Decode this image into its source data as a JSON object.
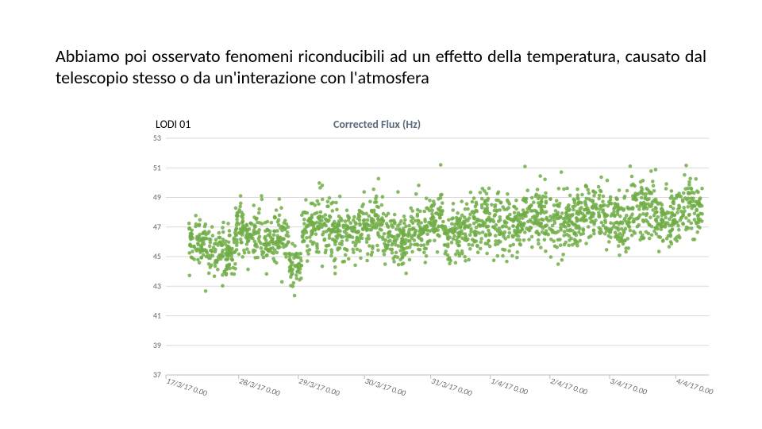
{
  "paragraph": "Abbiamo poi osservato fenomeni riconducibili ad un effetto della temperatura, causato dal telescopio stesso o da un'interazione con l'atmosfera",
  "station_label": "LODI 01",
  "chart": {
    "type": "scatter",
    "title": "Corrected Flux (Hz)",
    "title_color": "#5a6b7d",
    "title_fontsize": 14,
    "ylim": [
      37,
      53
    ],
    "ytick_step": 2,
    "yticks": [
      37,
      39,
      41,
      43,
      45,
      47,
      49,
      51,
      53
    ],
    "xlim": [
      0,
      8.2
    ],
    "xticks": [
      {
        "x": 0.0,
        "label": "17/3/17 0.00"
      },
      {
        "x": 1.1,
        "label": "28/3/17 0.00"
      },
      {
        "x": 2.0,
        "label": "29/3/17 0.00"
      },
      {
        "x": 3.0,
        "label": "30/3/17 0.00"
      },
      {
        "x": 4.0,
        "label": "31/3/17 0.00"
      },
      {
        "x": 4.9,
        "label": "1/4/17 0.00"
      },
      {
        "x": 5.8,
        "label": "2/4/17 0.00"
      },
      {
        "x": 6.7,
        "label": "3/4/17 0.00"
      },
      {
        "x": 7.7,
        "label": "4/4/17 0.00"
      }
    ],
    "marker_color": "#70ad47",
    "marker_radius": 2.3,
    "marker_opacity": 0.85,
    "grid_color": "#d9d9d9",
    "axis_color": "#bfbfbf",
    "background_color": "#ffffff",
    "data_band": {
      "x_start": 0.35,
      "x_end": 8.1,
      "segments": [
        {
          "from": 0.35,
          "to": 0.7,
          "center": 46.0,
          "spread": 1.5
        },
        {
          "from": 0.7,
          "to": 1.05,
          "center": 45.2,
          "spread": 1.6
        },
        {
          "from": 1.05,
          "to": 1.45,
          "center": 46.8,
          "spread": 1.8
        },
        {
          "from": 1.45,
          "to": 1.85,
          "center": 46.2,
          "spread": 1.5
        },
        {
          "from": 1.85,
          "to": 2.05,
          "center": 44.3,
          "spread": 1.4
        },
        {
          "from": 2.05,
          "to": 2.5,
          "center": 47.0,
          "spread": 1.7
        },
        {
          "from": 2.5,
          "to": 2.9,
          "center": 46.5,
          "spread": 1.6
        },
        {
          "from": 2.9,
          "to": 3.3,
          "center": 47.2,
          "spread": 1.8
        },
        {
          "from": 3.3,
          "to": 3.7,
          "center": 46.3,
          "spread": 1.6
        },
        {
          "from": 3.7,
          "to": 4.1,
          "center": 47.0,
          "spread": 1.7
        },
        {
          "from": 4.1,
          "to": 4.2,
          "center": 47.8,
          "spread": 1.6
        },
        {
          "from": 4.2,
          "to": 4.6,
          "center": 46.7,
          "spread": 1.7
        },
        {
          "from": 4.6,
          "to": 5.0,
          "center": 47.4,
          "spread": 1.7
        },
        {
          "from": 5.0,
          "to": 5.4,
          "center": 47.0,
          "spread": 1.8
        },
        {
          "from": 5.4,
          "to": 5.8,
          "center": 47.6,
          "spread": 1.8
        },
        {
          "from": 5.8,
          "to": 6.2,
          "center": 47.2,
          "spread": 1.7
        },
        {
          "from": 6.2,
          "to": 6.6,
          "center": 48.0,
          "spread": 1.8
        },
        {
          "from": 6.6,
          "to": 7.0,
          "center": 47.3,
          "spread": 1.8
        },
        {
          "from": 7.0,
          "to": 7.4,
          "center": 48.2,
          "spread": 1.9
        },
        {
          "from": 7.4,
          "to": 7.8,
          "center": 47.5,
          "spread": 1.8
        },
        {
          "from": 7.8,
          "to": 8.1,
          "center": 48.4,
          "spread": 1.9
        }
      ],
      "points_per_unit_x": 280,
      "outlier_high": {
        "x": 4.15,
        "y": 51.2
      }
    }
  }
}
